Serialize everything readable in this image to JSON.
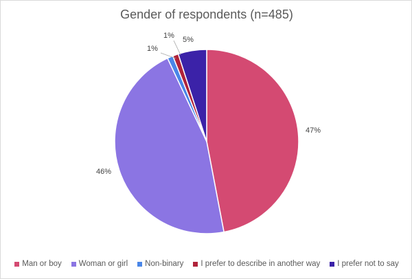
{
  "chart_data": {
    "type": "pie",
    "title": "Gender of respondents (n=485)",
    "slices": [
      {
        "label": "Man or boy",
        "value": 47,
        "value_label": "47%",
        "color": "#d44a72"
      },
      {
        "label": "Woman or girl",
        "value": 46,
        "value_label": "46%",
        "color": "#8b75e3"
      },
      {
        "label": "Non-binary",
        "value": 1,
        "value_label": "1%",
        "color": "#4a86e8"
      },
      {
        "label": "I prefer to describe in another way",
        "value": 1,
        "value_label": "1%",
        "color": "#b0233a"
      },
      {
        "label": "I prefer not to say",
        "value": 5,
        "value_label": "5%",
        "color": "#3b22a8"
      }
    ],
    "legend": {
      "position": "bottom"
    }
  }
}
